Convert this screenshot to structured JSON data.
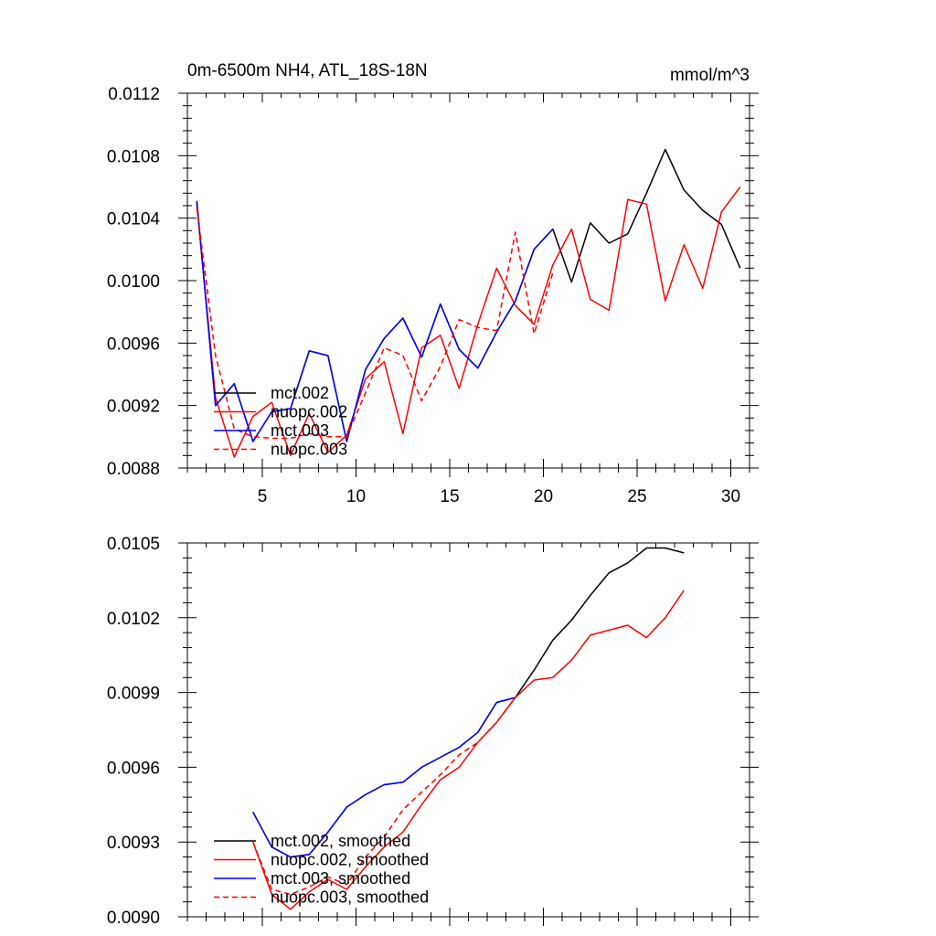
{
  "chart_data": [
    {
      "type": "line",
      "title": "0m-6500m NH4, ATL_18S-18N",
      "units_label": "mmol/m^3",
      "xlabel": "",
      "ylabel": "",
      "xlim": [
        1,
        31
      ],
      "ylim": [
        0.0088,
        0.0112
      ],
      "xticks": [
        5,
        10,
        15,
        20,
        25,
        30
      ],
      "xtick_labels": [
        "5",
        "10",
        "15",
        "20",
        "25",
        "30"
      ],
      "yticks": [
        0.0088,
        0.0092,
        0.0096,
        0.01,
        0.0104,
        0.0108,
        0.0112
      ],
      "ytick_labels": [
        "0.0088",
        "0.0092",
        "0.0096",
        "0.0100",
        "0.0104",
        "0.0108",
        "0.0112"
      ],
      "grid": false,
      "legend_position": "lower-left",
      "series": [
        {
          "name": "mct.002",
          "color": "#000000",
          "dash": "solid",
          "x": [
            1.5,
            2.5,
            3.5,
            4.5,
            5.5,
            6.5,
            7.5,
            8.5,
            9.5,
            10.5,
            11.5,
            12.5,
            13.5,
            14.5,
            15.5,
            16.5,
            17.5,
            18.5,
            19.5,
            20.5,
            21.5,
            22.5,
            23.5,
            24.5,
            25.5,
            26.5,
            27.5,
            28.5,
            29.5,
            30.5
          ],
          "values": [
            0.01051,
            0.0092,
            0.00934,
            0.00897,
            0.00916,
            0.00918,
            0.00955,
            0.00952,
            0.00897,
            0.00943,
            0.00963,
            0.00976,
            0.00951,
            0.00985,
            0.00956,
            0.00944,
            0.00967,
            0.00987,
            0.0102,
            0.01033,
            0.00999,
            0.01037,
            0.01024,
            0.0103,
            0.01056,
            0.01084,
            0.01058,
            0.01045,
            0.01036,
            0.01008
          ]
        },
        {
          "name": "nuopc.002",
          "color": "#ff0000",
          "dash": "solid",
          "x": [
            1.5,
            2.5,
            3.5,
            4.5,
            5.5,
            6.5,
            7.5,
            8.5,
            9.5,
            10.5,
            11.5,
            12.5,
            13.5,
            14.5,
            15.5,
            16.5,
            17.5,
            18.5,
            19.5,
            20.5,
            21.5,
            22.5,
            23.5,
            24.5,
            25.5,
            26.5,
            27.5,
            28.5,
            29.5,
            30.5
          ],
          "values": [
            0.01049,
            0.00925,
            0.00887,
            0.00913,
            0.00922,
            0.00888,
            0.00915,
            0.0089,
            0.00901,
            0.00937,
            0.00948,
            0.00902,
            0.00957,
            0.00965,
            0.00931,
            0.00972,
            0.01008,
            0.00984,
            0.00972,
            0.0101,
            0.01033,
            0.00988,
            0.00981,
            0.01052,
            0.01049,
            0.00987,
            0.01023,
            0.00995,
            0.01044,
            0.0106
          ]
        },
        {
          "name": "mct.003",
          "color": "#0000ff",
          "dash": "solid",
          "x": [
            1.5,
            2.5,
            3.5,
            4.5,
            5.5,
            6.5,
            7.5,
            8.5,
            9.5,
            10.5,
            11.5,
            12.5,
            13.5,
            14.5,
            15.5,
            16.5,
            17.5,
            18.5,
            19.5,
            20.5
          ],
          "values": [
            0.01051,
            0.0092,
            0.00934,
            0.00897,
            0.00916,
            0.00918,
            0.00955,
            0.00952,
            0.00897,
            0.00943,
            0.00963,
            0.00976,
            0.00951,
            0.00985,
            0.00956,
            0.00944,
            0.00967,
            0.00987,
            0.0102,
            0.01033
          ]
        },
        {
          "name": "nuopc.003",
          "color": "#ff0000",
          "dash": "dashed",
          "x": [
            1.5,
            2.5,
            3.5,
            4.5,
            5.5,
            6.5,
            7.5,
            8.5,
            9.5,
            10.5,
            11.5,
            12.5,
            13.5,
            14.5,
            15.5,
            16.5,
            17.5,
            18.5,
            19.5,
            20.5
          ],
          "values": [
            0.01047,
            0.00952,
            0.00905,
            0.009,
            0.00899,
            0.00899,
            0.00902,
            0.009,
            0.009,
            0.00928,
            0.00957,
            0.00952,
            0.00923,
            0.00945,
            0.00975,
            0.0097,
            0.00968,
            0.01031,
            0.00966,
            0.01005
          ]
        }
      ]
    },
    {
      "type": "line",
      "title": "",
      "xlabel": "",
      "ylabel": "",
      "xlim": [
        1,
        31
      ],
      "ylim": [
        0.009,
        0.0105
      ],
      "xticks": [
        5,
        10,
        15,
        20,
        25,
        30
      ],
      "xtick_labels": [],
      "yticks": [
        0.009,
        0.0093,
        0.0096,
        0.0099,
        0.0102,
        0.0105
      ],
      "ytick_labels": [
        "0.0090",
        "0.0093",
        "0.0096",
        "0.0099",
        "0.0102",
        "0.0105"
      ],
      "grid": false,
      "legend_position": "lower-left",
      "series": [
        {
          "name": "mct.002, smoothed",
          "color": "#000000",
          "dash": "solid",
          "x": [
            4.5,
            5.5,
            6.5,
            7.5,
            8.5,
            9.5,
            10.5,
            11.5,
            12.5,
            13.5,
            14.5,
            15.5,
            16.5,
            17.5,
            18.5,
            19.5,
            20.5,
            21.5,
            22.5,
            23.5,
            24.5,
            25.5,
            26.5,
            27.5
          ],
          "values": [
            0.00942,
            0.00928,
            0.00924,
            0.00925,
            0.00934,
            0.00944,
            0.00949,
            0.00953,
            0.00954,
            0.0096,
            0.00964,
            0.00968,
            0.00974,
            0.00986,
            0.00988,
            0.00999,
            0.01011,
            0.01019,
            0.01029,
            0.01038,
            0.01042,
            0.01048,
            0.01048,
            0.01046
          ]
        },
        {
          "name": "nuopc.002, smoothed",
          "color": "#ff0000",
          "dash": "solid",
          "x": [
            4.5,
            5.5,
            6.5,
            7.5,
            8.5,
            9.5,
            10.5,
            11.5,
            12.5,
            13.5,
            14.5,
            15.5,
            16.5,
            17.5,
            18.5,
            19.5,
            20.5,
            21.5,
            22.5,
            23.5,
            24.5,
            25.5,
            26.5,
            27.5
          ],
          "values": [
            0.0093,
            0.00909,
            0.00903,
            0.0091,
            0.00915,
            0.00911,
            0.0092,
            0.00928,
            0.00934,
            0.00945,
            0.00955,
            0.0096,
            0.0097,
            0.00978,
            0.00988,
            0.00995,
            0.00996,
            0.01003,
            0.01013,
            0.01015,
            0.01017,
            0.01012,
            0.0102,
            0.01031
          ]
        },
        {
          "name": "mct.003, smoothed",
          "color": "#0000ff",
          "dash": "solid",
          "x": [
            4.5,
            5.5,
            6.5,
            7.5,
            8.5,
            9.5,
            10.5,
            11.5,
            12.5,
            13.5,
            14.5,
            15.5,
            16.5,
            17.5,
            18.5
          ],
          "values": [
            0.00942,
            0.00928,
            0.00924,
            0.00925,
            0.00934,
            0.00944,
            0.00949,
            0.00953,
            0.00954,
            0.0096,
            0.00964,
            0.00968,
            0.00974,
            0.00986,
            0.00988
          ]
        },
        {
          "name": "nuopc.003, smoothed",
          "color": "#ff0000",
          "dash": "dashed",
          "x": [
            4.5,
            5.5,
            6.5,
            7.5,
            8.5,
            9.5,
            10.5,
            11.5,
            12.5,
            13.5,
            14.5,
            15.5,
            16.5,
            17.5,
            18.5
          ],
          "values": [
            0.0093,
            0.00911,
            0.00909,
            0.00912,
            0.00916,
            0.00913,
            0.00924,
            0.00932,
            0.00943,
            0.0095,
            0.00957,
            0.00965,
            0.0097,
            0.00978,
            0.00988
          ]
        }
      ]
    }
  ]
}
